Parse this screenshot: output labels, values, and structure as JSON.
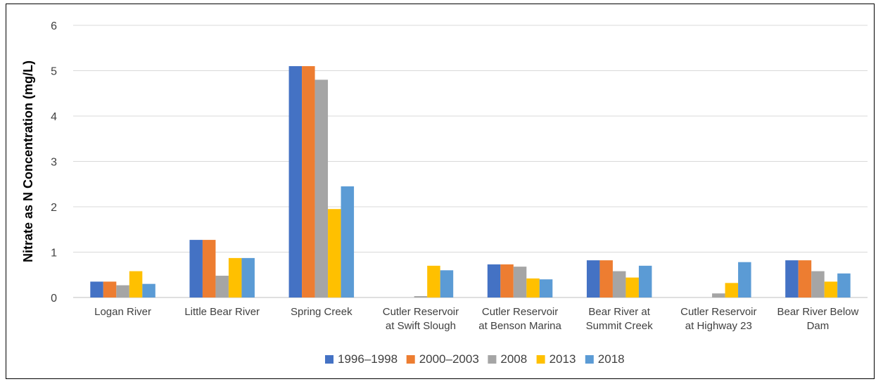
{
  "chart_data": {
    "type": "bar",
    "title": "",
    "xlabel": "",
    "ylabel": "Nitrate as N Concentration (mg/L)",
    "ylim": [
      0,
      6
    ],
    "yticks": [
      "0",
      "1",
      "2",
      "3",
      "4",
      "5",
      "6"
    ],
    "grid": true,
    "legend_position": "bottom",
    "categories": [
      [
        "Logan River"
      ],
      [
        "Little Bear River"
      ],
      [
        "Spring Creek"
      ],
      [
        "Cutler Reservoir",
        "at Swift Slough"
      ],
      [
        "Cutler Reservoir",
        "at Benson Marina"
      ],
      [
        "Bear River at",
        "Summit Creek"
      ],
      [
        "Cutler Reservoir",
        "at Highway 23"
      ],
      [
        "Bear River Below",
        "Dam"
      ]
    ],
    "series": [
      {
        "name": "1996–1998",
        "color": "#4472C4",
        "values": [
          0.35,
          1.27,
          5.1,
          null,
          0.73,
          0.82,
          null,
          0.82
        ]
      },
      {
        "name": "2000–2003",
        "color": "#ED7D31",
        "values": [
          0.35,
          1.27,
          5.1,
          null,
          0.73,
          0.82,
          null,
          0.82
        ]
      },
      {
        "name": "2008",
        "color": "#A5A5A5",
        "values": [
          0.27,
          0.48,
          4.8,
          0.03,
          0.68,
          0.58,
          0.09,
          0.58
        ]
      },
      {
        "name": "2013",
        "color": "#FFC000",
        "values": [
          0.58,
          0.87,
          1.95,
          0.7,
          0.42,
          0.44,
          0.32,
          0.35
        ]
      },
      {
        "name": "2018",
        "color": "#5B9BD5",
        "values": [
          0.3,
          0.87,
          2.45,
          0.6,
          0.4,
          0.7,
          0.78,
          0.53
        ]
      }
    ]
  }
}
